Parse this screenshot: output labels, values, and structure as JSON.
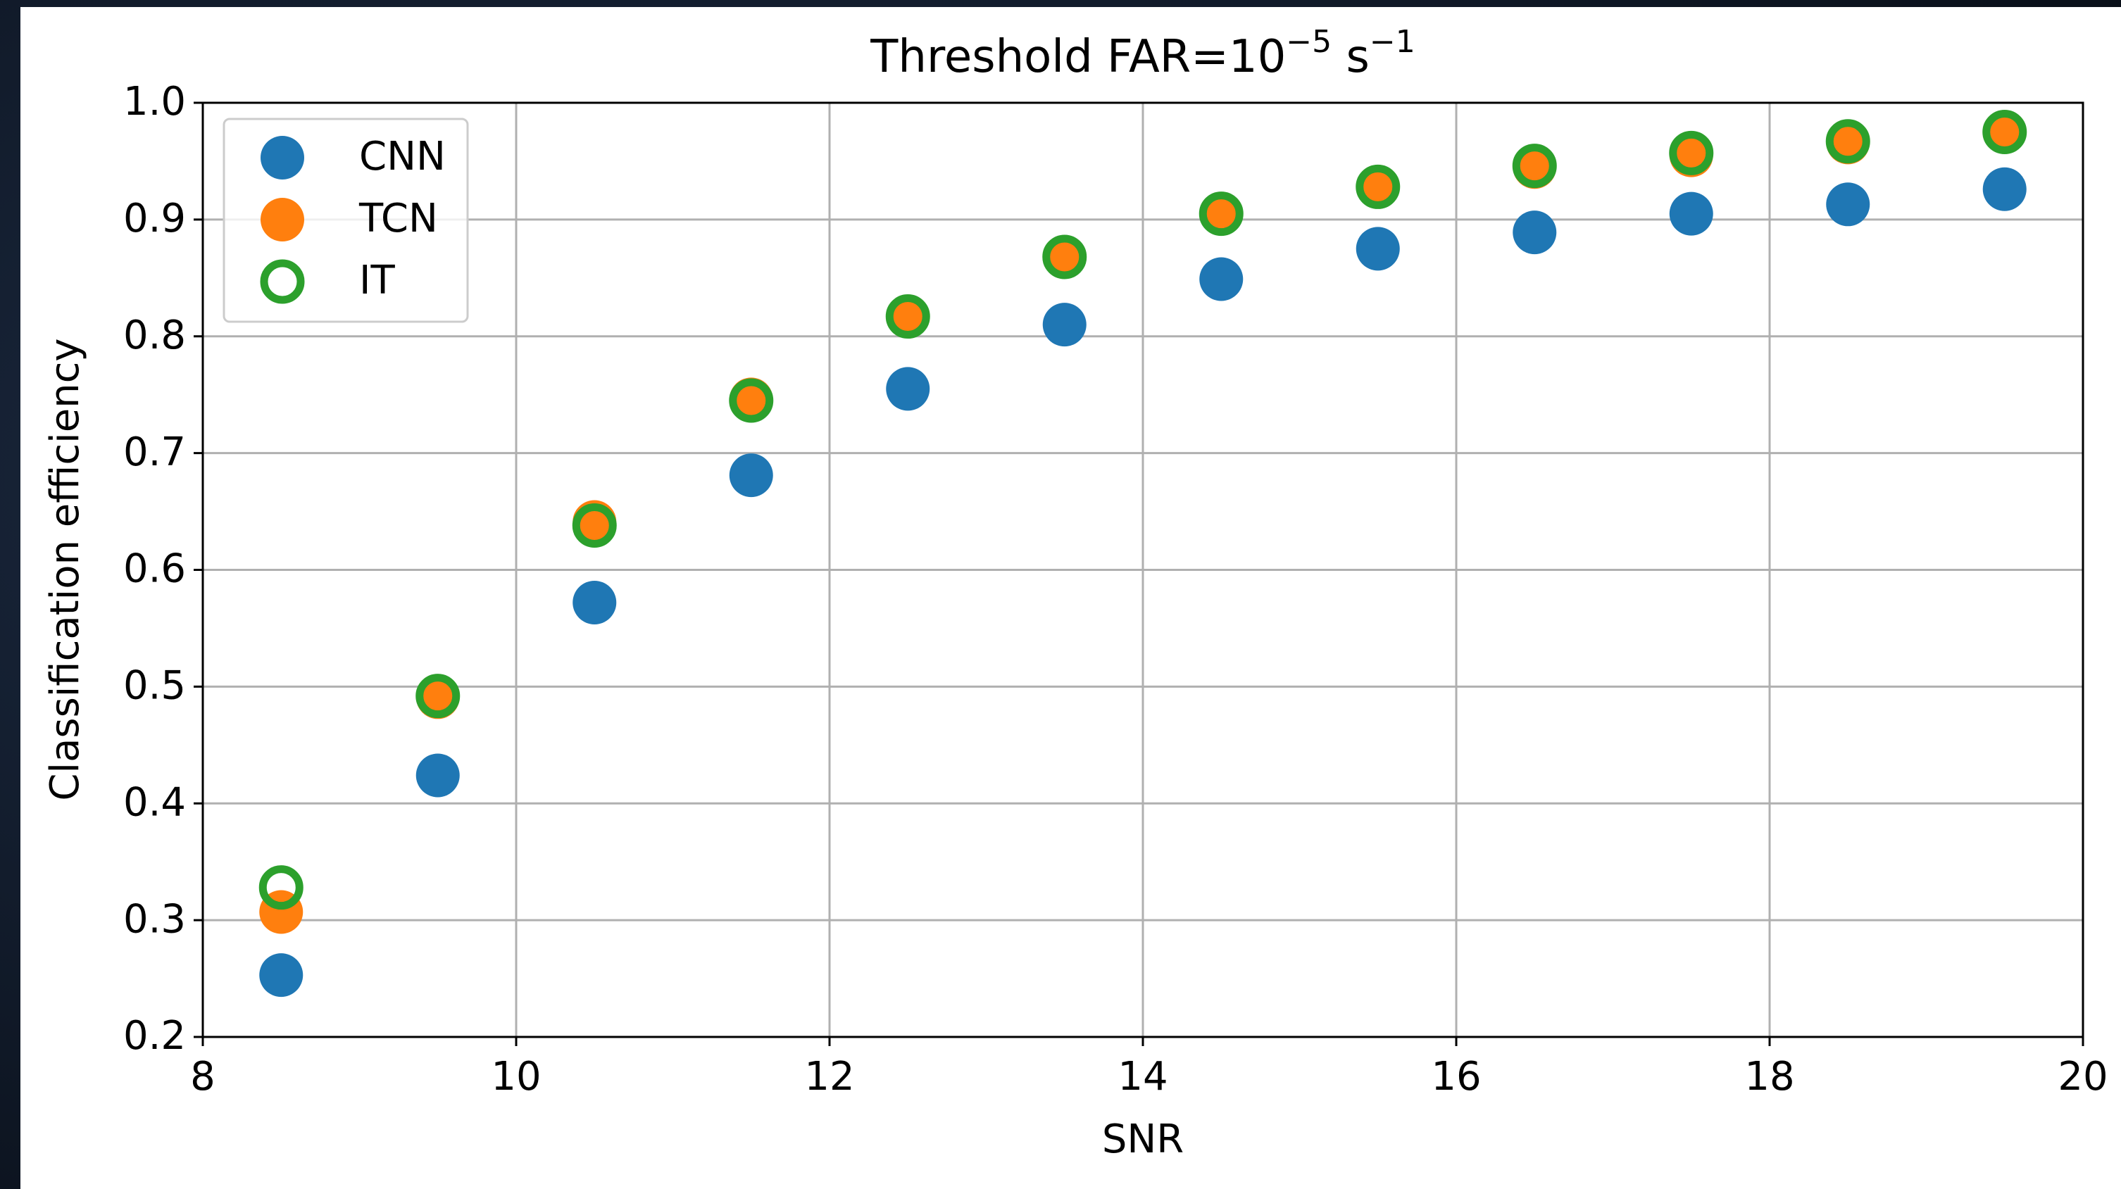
{
  "chart_data": {
    "type": "scatter",
    "title_parts": [
      "Threshold FAR=10",
      "−5",
      " s",
      "−1"
    ],
    "xlabel": "SNR",
    "ylabel": "Classification efficiency",
    "x": [
      8.5,
      9.5,
      10.5,
      11.5,
      12.5,
      13.5,
      14.5,
      15.5,
      16.5,
      17.5,
      18.5,
      19.5
    ],
    "series": [
      {
        "name": "CNN",
        "color": "#1f77b4",
        "marker": "filled",
        "values": [
          0.253,
          0.424,
          0.572,
          0.681,
          0.755,
          0.81,
          0.849,
          0.875,
          0.889,
          0.905,
          0.913,
          0.926
        ]
      },
      {
        "name": "TCN",
        "color": "#ff7f0e",
        "marker": "filled",
        "values": [
          0.307,
          0.491,
          0.641,
          0.746,
          0.817,
          0.868,
          0.905,
          0.928,
          0.945,
          0.955,
          0.966,
          0.975
        ]
      },
      {
        "name": "IT",
        "color": "#2ca02c",
        "marker": "hollow",
        "values": [
          0.328,
          0.492,
          0.638,
          0.745,
          0.817,
          0.868,
          0.905,
          0.928,
          0.946,
          0.957,
          0.967,
          0.975
        ]
      }
    ],
    "xlim": [
      8,
      20
    ],
    "xticks": [
      8,
      10,
      12,
      14,
      16,
      18,
      20
    ],
    "ylim": [
      0.2,
      1
    ],
    "yticks": [
      0.2,
      0.3,
      0.4,
      0.5,
      0.6,
      0.7,
      0.8,
      0.9,
      {
        "value": 1,
        "label": "1.0"
      }
    ],
    "grid": true,
    "legend": "upper-left"
  }
}
